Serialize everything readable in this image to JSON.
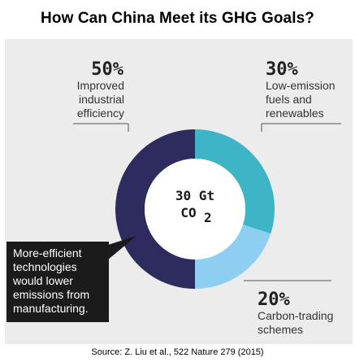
{
  "title": "How Can China Meet its GHG Goals?",
  "source": "Source: Z. Liu et al., 522 Nature 279 (2015)",
  "chart_data": {
    "type": "pie",
    "donut": true,
    "center_label": [
      "30 Gt",
      "CO",
      "2"
    ],
    "slices": [
      {
        "percent_label": "50%",
        "value": 50,
        "label_lines": [
          "Improved",
          "industrial",
          "efficiency"
        ],
        "color": "#2e2b5e"
      },
      {
        "percent_label": "30%",
        "value": 30,
        "label_lines": [
          "Low-emission",
          "fuels and",
          "renewables"
        ],
        "color": "#3db5c6"
      },
      {
        "percent_label": "20%",
        "value": 20,
        "label_lines": [
          "Carbon-trading",
          "schemes"
        ],
        "color": "#8ecff1"
      }
    ],
    "callout": {
      "lines": [
        "More-efficient",
        "technologies",
        "would lower",
        "emissions from",
        "manufacturing."
      ],
      "background": "#1b1b1b"
    }
  }
}
